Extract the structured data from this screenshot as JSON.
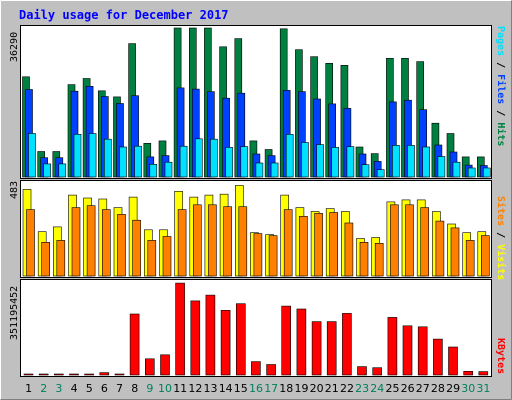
{
  "chart_data": [
    {
      "type": "bar",
      "title": "Daily usage for December 2017",
      "panel": "hits-files-pages",
      "categories": [
        "1",
        "2",
        "3",
        "4",
        "5",
        "6",
        "7",
        "8",
        "9",
        "10",
        "11",
        "12",
        "13",
        "14",
        "15",
        "16",
        "17",
        "18",
        "19",
        "20",
        "21",
        "22",
        "23",
        "24",
        "25",
        "26",
        "27",
        "28",
        "29",
        "30",
        "31"
      ],
      "ymax_label": "36290",
      "ylim": [
        0,
        36290
      ],
      "side_label_parts": [
        "Pages",
        " / ",
        "Files",
        " / ",
        "Hits"
      ],
      "series": [
        {
          "name": "Hits",
          "color": "#008040",
          "values": [
            24400,
            6200,
            6200,
            22500,
            24000,
            21000,
            19500,
            32500,
            8200,
            8800,
            37800,
            37000,
            36700,
            31700,
            33700,
            8800,
            6700,
            36100,
            31000,
            29300,
            27700,
            27200,
            7300,
            5700,
            28900,
            28900,
            28100,
            13100,
            10600,
            4900,
            4900
          ]
        },
        {
          "name": "Files",
          "color": "#0040ff",
          "values": [
            21300,
            4700,
            4700,
            20900,
            22100,
            19600,
            17900,
            19800,
            4900,
            5200,
            21700,
            21400,
            20800,
            19200,
            20400,
            5600,
            5200,
            21100,
            20800,
            19000,
            17800,
            16700,
            5600,
            3800,
            18300,
            18700,
            16400,
            7800,
            6100,
            2900,
            2800
          ]
        },
        {
          "name": "Pages",
          "color": "#00e0ff",
          "values": [
            10600,
            3200,
            3200,
            10400,
            10600,
            9200,
            7300,
            7500,
            3100,
            3600,
            7500,
            9300,
            9200,
            7200,
            7400,
            3400,
            3400,
            10400,
            8400,
            7900,
            7200,
            7400,
            3000,
            1800,
            7700,
            7700,
            7300,
            5000,
            3600,
            2200,
            2200
          ]
        }
      ]
    },
    {
      "type": "bar",
      "panel": "visits-sites",
      "ymax_label": "483",
      "ylim": [
        0,
        483
      ],
      "side_label_parts": [
        "Sites",
        " / ",
        "Visits"
      ],
      "series": [
        {
          "name": "Visits",
          "color": "#ffff00",
          "values": [
            450,
            230,
            255,
            420,
            405,
            400,
            355,
            410,
            240,
            240,
            440,
            410,
            420,
            425,
            470,
            225,
            215,
            420,
            355,
            335,
            350,
            335,
            195,
            200,
            385,
            395,
            395,
            335,
            270,
            225,
            230
          ]
        },
        {
          "name": "Sites",
          "color": "#ff8000",
          "values": [
            345,
            175,
            185,
            355,
            365,
            345,
            320,
            290,
            185,
            205,
            345,
            370,
            370,
            360,
            360,
            220,
            210,
            345,
            310,
            325,
            330,
            275,
            175,
            170,
            370,
            370,
            355,
            285,
            250,
            185,
            210
          ]
        }
      ]
    },
    {
      "type": "bar",
      "panel": "kbytes",
      "ymax_label": "351195452",
      "ylim": [
        0,
        351195452
      ],
      "side_label_parts": [
        "KBytes"
      ],
      "series": [
        {
          "name": "KBytes",
          "color": "#ff0000",
          "values": [
            3000000,
            3000000,
            3000000,
            4000000,
            4000000,
            9000000,
            4000000,
            233000000,
            62000000,
            77000000,
            351000000,
            283000000,
            305000000,
            247000000,
            272000000,
            51000000,
            40000000,
            263000000,
            252000000,
            204000000,
            204000000,
            235000000,
            32000000,
            28000000,
            220000000,
            188000000,
            184000000,
            137000000,
            107000000,
            14000000,
            13000000
          ]
        }
      ]
    }
  ],
  "x_axis": {
    "day_color": "#000000",
    "weekend_color": "#00805c",
    "weekend_days": [
      "2",
      "3",
      "9",
      "10",
      "16",
      "17",
      "23",
      "24",
      "30",
      "31"
    ]
  },
  "colors": {
    "background": "#c0c0c0",
    "title": "#0000ff",
    "panel_bg": "#ffffff",
    "border_light": "#ffffff",
    "border_dark": "#808080"
  }
}
